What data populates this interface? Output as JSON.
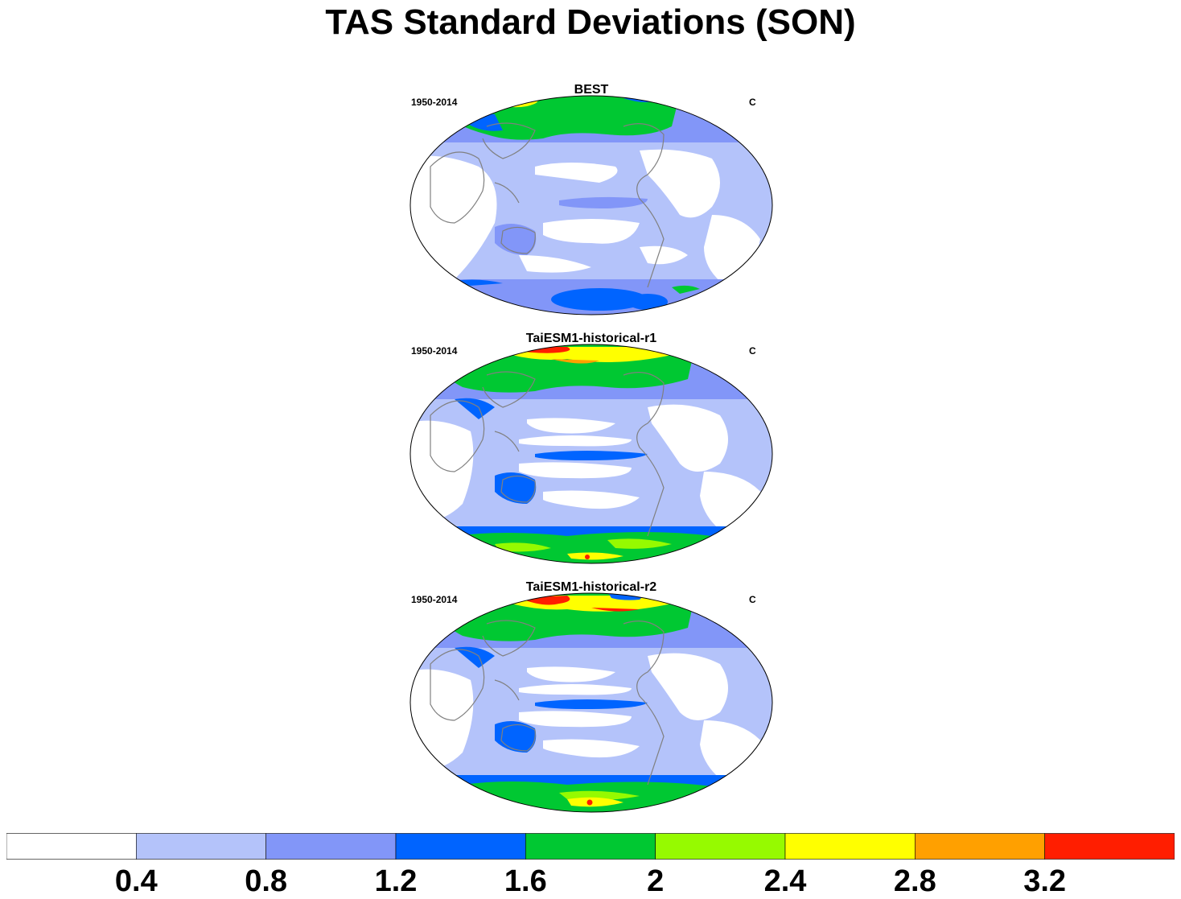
{
  "title": "TAS Standard Deviations (SON)",
  "panels": [
    {
      "title": "BEST",
      "period": "1950-2014",
      "unit": "C"
    },
    {
      "title": "TaiESM1-historical-r1",
      "period": "1950-2014",
      "unit": "C"
    },
    {
      "title": "TaiESM1-historical-r2",
      "period": "1950-2014",
      "unit": "C"
    }
  ],
  "colorbar": {
    "colors": [
      "#ffffff",
      "#b4c3fa",
      "#8296f8",
      "#0064ff",
      "#00c832",
      "#96fa00",
      "#ffff00",
      "#ffa000",
      "#ff1e00"
    ],
    "labels": [
      "0.4",
      "0.8",
      "1.2",
      "1.6",
      "2",
      "2.4",
      "2.8",
      "3.2"
    ]
  }
}
